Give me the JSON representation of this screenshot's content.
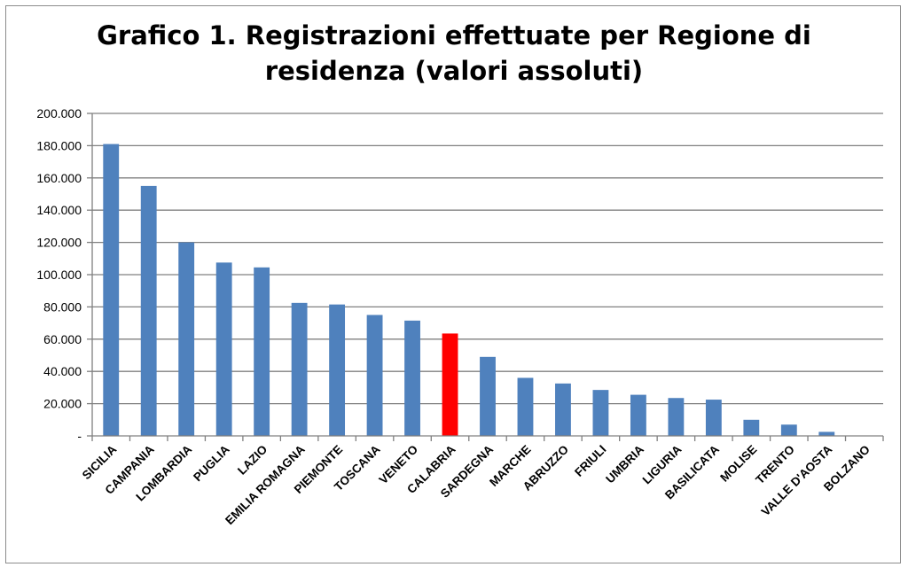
{
  "chart_data": {
    "type": "bar",
    "title_line1": "Grafico 1. Registrazioni effettuate per Regione di",
    "title_line2": "residenza (valori assoluti)",
    "xlabel": "",
    "ylabel": "",
    "ylim": [
      0,
      200000
    ],
    "yticks": [
      0,
      20000,
      40000,
      60000,
      80000,
      100000,
      120000,
      140000,
      160000,
      180000,
      200000
    ],
    "ytick_labels": [
      "-",
      "20.000",
      "40.000",
      "60.000",
      "80.000",
      "100.000",
      "120.000",
      "140.000",
      "160.000",
      "180.000",
      "200.000"
    ],
    "grid": true,
    "legend": "none",
    "categories": [
      "SICILIA",
      "CAMPANIA",
      "LOMBARDIA",
      "PUGLIA",
      "LAZIO",
      "EMILIA ROMAGNA",
      "PIEMONTE",
      "TOSCANA",
      "VENETO",
      "CALABRIA",
      "SARDEGNA",
      "MARCHE",
      "ABRUZZO",
      "FRIULI",
      "UMBRIA",
      "LIGURIA",
      "BASILICATA",
      "MOLISE",
      "TRENTO",
      "VALLE D'AOSTA",
      "BOLZANO"
    ],
    "values": [
      181000,
      155000,
      120000,
      107500,
      104500,
      82500,
      81500,
      75000,
      71500,
      63500,
      49000,
      36000,
      32500,
      28500,
      25500,
      23500,
      22500,
      10000,
      7000,
      2500,
      0
    ],
    "colors": {
      "bar": "#4f81bd",
      "highlight": "#ff0000",
      "highlight_category": "CALABRIA",
      "grid": "#808080",
      "axis": "#808080"
    }
  }
}
